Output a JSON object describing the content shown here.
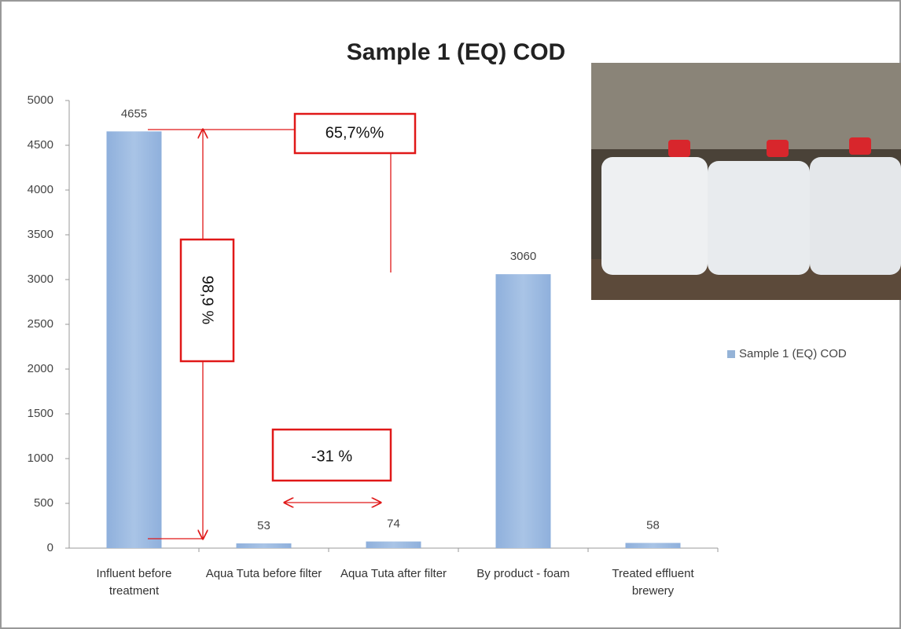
{
  "chart_data": {
    "type": "bar",
    "title": "Sample 1 (EQ) COD",
    "categories": [
      "Influent  before treatment",
      "Aqua Tuta before filter",
      "Aqua Tuta after filter",
      "By product - foam",
      "Treated effluent brewery"
    ],
    "series": [
      {
        "name": "Sample 1 (EQ) COD",
        "color": "#95b3d7",
        "values": [
          4655,
          53,
          74,
          3060,
          58
        ]
      }
    ],
    "ylim": [
      0,
      5000
    ],
    "yticks": [
      0,
      500,
      1000,
      1500,
      2000,
      2500,
      3000,
      3500,
      4000,
      4500,
      5000
    ],
    "grid": false,
    "legend": "right",
    "annotations": [
      "65,7%%",
      "98,9 %",
      "-31 %"
    ]
  }
}
